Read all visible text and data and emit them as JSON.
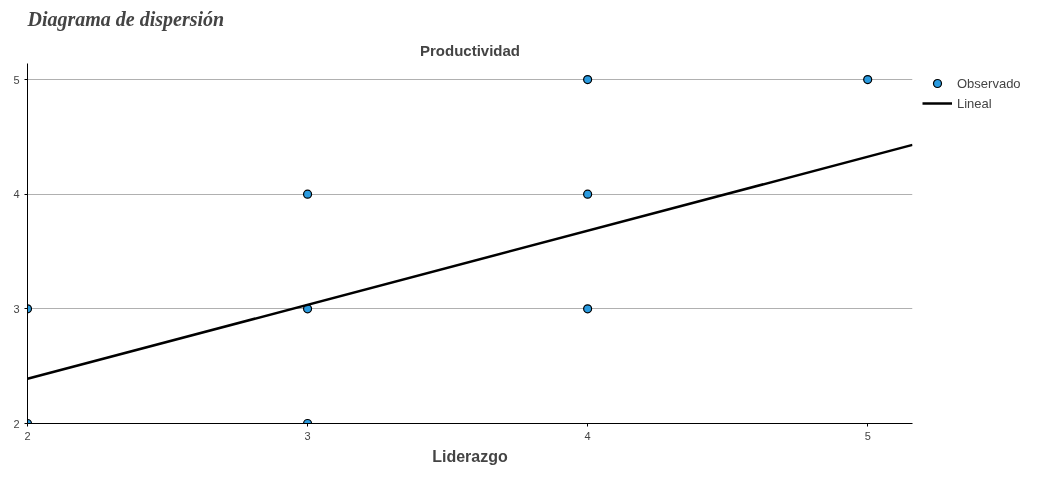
{
  "chart_data": {
    "type": "scatter",
    "annotations": [
      "Diagrama de dispersión"
    ],
    "xlabel": "Liderazgo",
    "ylabel": "Productividad",
    "xlim": [
      2,
      5.16
    ],
    "ylim": [
      2,
      5.14
    ],
    "xticks": [
      2,
      3,
      4,
      5
    ],
    "yticks": [
      2,
      3,
      4,
      5
    ],
    "grid": "y",
    "legend": "top right",
    "series": [
      {
        "name": "Observado",
        "marker": "circle",
        "color": "#2a9be0",
        "x": [
          2,
          2,
          3,
          3,
          3,
          4,
          4,
          4,
          5
        ],
        "values": [
          3,
          2,
          4,
          3,
          2,
          5,
          4,
          3,
          5
        ]
      },
      {
        "name": "Lineal",
        "type": "line",
        "color": "#000000",
        "x": [
          2,
          5.16
        ],
        "values": [
          2.39,
          4.43
        ]
      }
    ]
  }
}
